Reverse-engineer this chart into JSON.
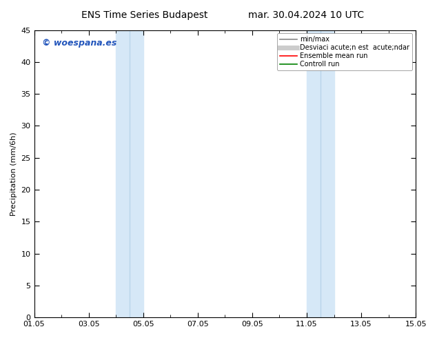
{
  "title_left": "ENS Time Series Budapest",
  "title_right": "mar. 30.04.2024 10 UTC",
  "ylabel": "Precipitation (mm/6h)",
  "ylim": [
    0,
    45
  ],
  "yticks": [
    0,
    5,
    10,
    15,
    20,
    25,
    30,
    35,
    40,
    45
  ],
  "xlim_start": 0.0,
  "xlim_end": 14.0,
  "xtick_positions": [
    0,
    2,
    4,
    6,
    8,
    10,
    12,
    14
  ],
  "xtick_labels": [
    "01.05",
    "03.05",
    "05.05",
    "07.05",
    "09.05",
    "11.05",
    "13.05",
    "15.05"
  ],
  "shaded_bands": [
    {
      "x_start": 3.0,
      "x_end": 3.5
    },
    {
      "x_start": 3.5,
      "x_end": 4.0
    },
    {
      "x_start": 10.0,
      "x_end": 10.5
    },
    {
      "x_start": 10.5,
      "x_end": 11.0
    }
  ],
  "shade_color_light": "#ddeef8",
  "shade_color_mid": "#cce0f0",
  "shade_color": "#d6e8f7",
  "watermark": "© woespana.es",
  "watermark_color": "#2255bb",
  "watermark_fontsize": 9,
  "legend_items": [
    {
      "label": "min/max",
      "color": "#888888",
      "lw": 1.2,
      "style": "-"
    },
    {
      "label": "Desviaci acute;n est  acute;ndar",
      "color": "#cccccc",
      "lw": 5,
      "style": "-"
    },
    {
      "label": "Ensemble mean run",
      "color": "red",
      "lw": 1.2,
      "style": "-"
    },
    {
      "label": "Controll run",
      "color": "green",
      "lw": 1.2,
      "style": "-"
    }
  ],
  "bg_color": "#ffffff",
  "plot_bg_color": "#ffffff",
  "title_fontsize": 10,
  "ylabel_fontsize": 8,
  "tick_fontsize": 8,
  "legend_fontsize": 7
}
